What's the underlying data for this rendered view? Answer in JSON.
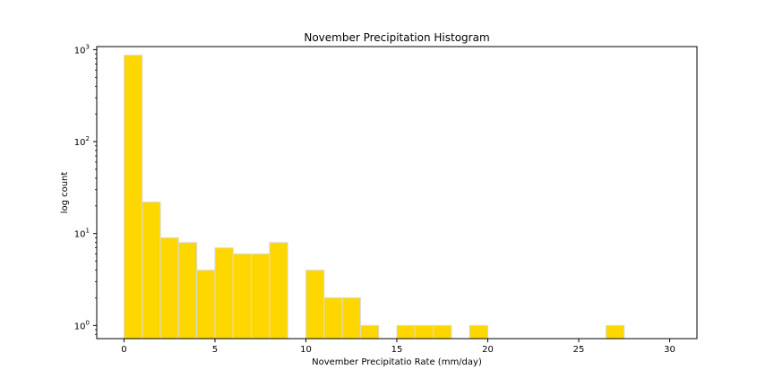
{
  "chart_data": {
    "type": "bar",
    "title": "November Precipitation Histogram",
    "xlabel": "November Precipitatio Rate (mm/day)",
    "ylabel": "log count",
    "y_scale": "log",
    "xlim": [
      -1.5,
      31.5
    ],
    "ylim": [
      0.72,
      1080
    ],
    "bin_width": 1.0,
    "bar_color": "#FFD700",
    "edge_color": "#d9d9d9",
    "grid": false,
    "x_ticks": [
      0,
      5,
      10,
      15,
      20,
      25,
      30
    ],
    "x_tick_labels": [
      "0",
      "5",
      "10",
      "15",
      "20",
      "25",
      "30"
    ],
    "y_ticks": [
      1,
      10,
      100,
      1000
    ],
    "y_tick_bases": [
      "10",
      "10",
      "10",
      "10"
    ],
    "y_tick_exponents": [
      "0",
      "1",
      "2",
      "3"
    ],
    "bins": [
      {
        "x": 0,
        "count": 870
      },
      {
        "x": 1,
        "count": 22
      },
      {
        "x": 2,
        "count": 9
      },
      {
        "x": 3,
        "count": 8
      },
      {
        "x": 4,
        "count": 4
      },
      {
        "x": 5,
        "count": 7
      },
      {
        "x": 6,
        "count": 6
      },
      {
        "x": 7,
        "count": 6
      },
      {
        "x": 8,
        "count": 8
      },
      {
        "x": 10,
        "count": 4
      },
      {
        "x": 11,
        "count": 2
      },
      {
        "x": 12,
        "count": 2
      },
      {
        "x": 13,
        "count": 1
      },
      {
        "x": 15,
        "count": 1
      },
      {
        "x": 16,
        "count": 1
      },
      {
        "x": 17,
        "count": 1
      },
      {
        "x": 19,
        "count": 1
      },
      {
        "x": 26.5,
        "count": 1
      }
    ]
  }
}
